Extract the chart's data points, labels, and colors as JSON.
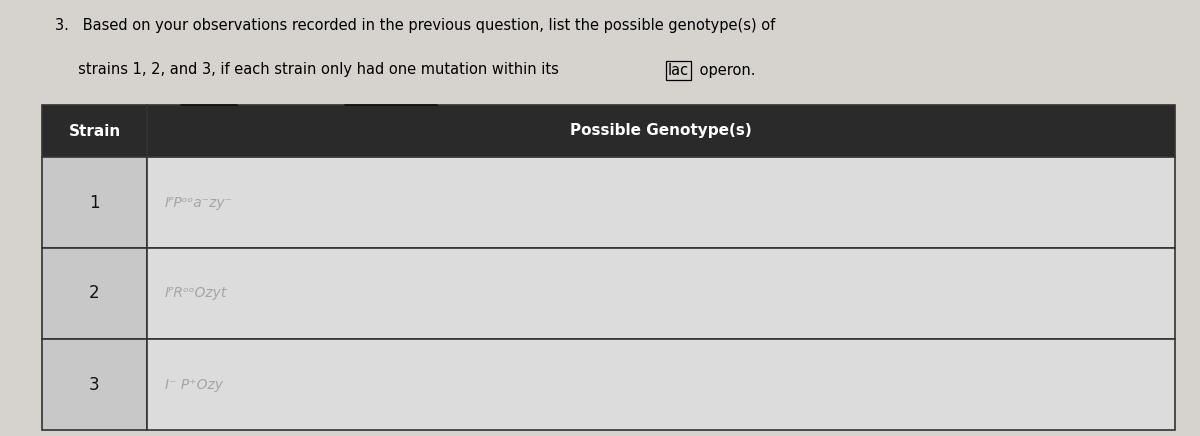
{
  "title_line1": "3.   Based on your observations recorded in the previous question, list the possible genotype(s) of",
  "title_line2": "     strains 1, 2, and 3, if each strain only had one mutation within its",
  "title_lac": "lac",
  "title_operon": " operon.",
  "col1_header": "Strain",
  "col2_header": "Possible Genotype(s)",
  "rows": [
    {
      "strain": "1",
      "genotype": "IᴾPᵒᵒa⁻zy⁻"
    },
    {
      "strain": "2",
      "genotype": "IᴾRᵒᵒOzyt"
    },
    {
      "strain": "3",
      "genotype": "I⁻ P⁺Ozy"
    }
  ],
  "header_bg": "#2a2a2a",
  "header_text_color": "#ffffff",
  "col1_bg": "#c8c8c8",
  "row_bg": "#dcdcdc",
  "border_color": "#333333",
  "text_color": "#111111",
  "page_bg": "#d6d3ce",
  "figwidth": 12.0,
  "figheight": 4.36,
  "dpi": 100
}
